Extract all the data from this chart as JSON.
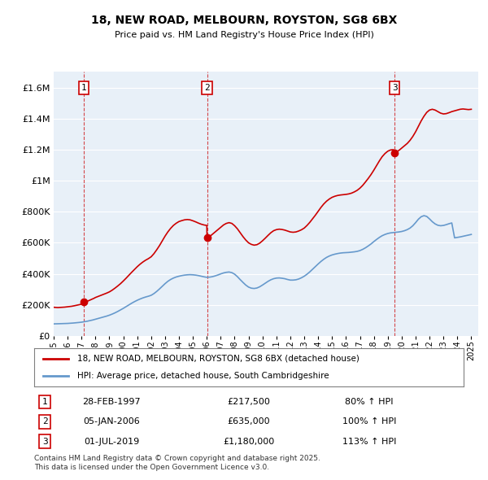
{
  "title": "18, NEW ROAD, MELBOURN, ROYSTON, SG8 6BX",
  "subtitle": "Price paid vs. HM Land Registry's House Price Index (HPI)",
  "xlim_start": 1995.0,
  "xlim_end": 2025.5,
  "ylim_min": 0,
  "ylim_max": 1700000,
  "yticks": [
    0,
    200000,
    400000,
    600000,
    800000,
    1000000,
    1200000,
    1400000,
    1600000
  ],
  "ytick_labels": [
    "£0",
    "£200K",
    "£400K",
    "£600K",
    "£800K",
    "£1M",
    "£1.2M",
    "£1.4M",
    "£1.6M"
  ],
  "bg_color": "#e8f0f8",
  "plot_bg_color": "#e8f0f8",
  "grid_color": "#ffffff",
  "red_line_color": "#cc0000",
  "blue_line_color": "#6699cc",
  "sale_points": [
    {
      "year": 1997.167,
      "price": 217500,
      "label": "1"
    },
    {
      "year": 2006.017,
      "price": 635000,
      "label": "2"
    },
    {
      "year": 2019.5,
      "price": 1180000,
      "label": "3"
    }
  ],
  "legend_entries": [
    "18, NEW ROAD, MELBOURN, ROYSTON, SG8 6BX (detached house)",
    "HPI: Average price, detached house, South Cambridgeshire"
  ],
  "table_rows": [
    {
      "num": "1",
      "date": "28-FEB-1997",
      "price": "£217,500",
      "change": "80% ↑ HPI"
    },
    {
      "num": "2",
      "date": "05-JAN-2006",
      "price": "£635,000",
      "change": "100% ↑ HPI"
    },
    {
      "num": "3",
      "date": "01-JUL-2019",
      "price": "£1,180,000",
      "change": "113% ↑ HPI"
    }
  ],
  "footer": "Contains HM Land Registry data © Crown copyright and database right 2025.\nThis data is licensed under the Open Government Licence v3.0.",
  "hpi_red_data": {
    "years": [
      1995.0,
      1995.1,
      1995.2,
      1995.3,
      1995.4,
      1995.5,
      1995.6,
      1995.7,
      1995.8,
      1995.9,
      1996.0,
      1996.1,
      1996.2,
      1996.3,
      1996.4,
      1996.5,
      1996.6,
      1996.7,
      1996.8,
      1996.9,
      1997.0,
      1997.1,
      1997.167,
      1997.2,
      1997.3,
      1997.4,
      1997.5,
      1997.6,
      1997.7,
      1997.8,
      1997.9,
      1998.0,
      1998.2,
      1998.4,
      1998.6,
      1998.8,
      1999.0,
      1999.2,
      1999.4,
      1999.6,
      1999.8,
      2000.0,
      2000.2,
      2000.4,
      2000.6,
      2000.8,
      2001.0,
      2001.2,
      2001.4,
      2001.6,
      2001.8,
      2002.0,
      2002.2,
      2002.4,
      2002.6,
      2002.8,
      2003.0,
      2003.2,
      2003.4,
      2003.6,
      2003.8,
      2004.0,
      2004.2,
      2004.4,
      2004.6,
      2004.8,
      2005.0,
      2005.2,
      2005.4,
      2005.6,
      2005.8,
      2006.0,
      2006.017,
      2006.2,
      2006.4,
      2006.6,
      2006.8,
      2007.0,
      2007.2,
      2007.4,
      2007.6,
      2007.8,
      2008.0,
      2008.2,
      2008.4,
      2008.6,
      2008.8,
      2009.0,
      2009.2,
      2009.4,
      2009.6,
      2009.8,
      2010.0,
      2010.2,
      2010.4,
      2010.6,
      2010.8,
      2011.0,
      2011.2,
      2011.4,
      2011.6,
      2011.8,
      2012.0,
      2012.2,
      2012.4,
      2012.6,
      2012.8,
      2013.0,
      2013.2,
      2013.4,
      2013.6,
      2013.8,
      2014.0,
      2014.2,
      2014.4,
      2014.6,
      2014.8,
      2015.0,
      2015.2,
      2015.4,
      2015.6,
      2015.8,
      2016.0,
      2016.2,
      2016.4,
      2016.6,
      2016.8,
      2017.0,
      2017.2,
      2017.4,
      2017.6,
      2017.8,
      2018.0,
      2018.2,
      2018.4,
      2018.6,
      2018.8,
      2019.0,
      2019.2,
      2019.4,
      2019.5,
      2019.6,
      2019.8,
      2020.0,
      2020.2,
      2020.4,
      2020.6,
      2020.8,
      2021.0,
      2021.2,
      2021.4,
      2021.6,
      2021.8,
      2022.0,
      2022.2,
      2022.4,
      2022.6,
      2022.8,
      2023.0,
      2023.2,
      2023.4,
      2023.6,
      2023.8,
      2024.0,
      2024.2,
      2024.4,
      2024.6,
      2024.8,
      2025.0
    ],
    "values": [
      185000,
      184000,
      183500,
      183000,
      183500,
      184000,
      184500,
      185000,
      186000,
      187000,
      188000,
      189000,
      190000,
      191500,
      193000,
      195000,
      197000,
      199000,
      201000,
      203000,
      205000,
      210000,
      217500,
      218000,
      220000,
      223000,
      227000,
      231000,
      235000,
      239000,
      243000,
      248000,
      255000,
      262000,
      269000,
      276000,
      284000,
      295000,
      308000,
      322000,
      337000,
      354000,
      372000,
      391000,
      410000,
      428000,
      446000,
      462000,
      476000,
      488000,
      498000,
      510000,
      530000,
      555000,
      582000,
      612000,
      643000,
      670000,
      693000,
      712000,
      726000,
      737000,
      743000,
      748000,
      750000,
      748000,
      742000,
      735000,
      727000,
      720000,
      715000,
      712000,
      635000,
      640000,
      655000,
      670000,
      685000,
      700000,
      715000,
      725000,
      730000,
      725000,
      710000,
      690000,
      665000,
      640000,
      618000,
      600000,
      590000,
      585000,
      588000,
      598000,
      613000,
      630000,
      648000,
      665000,
      678000,
      685000,
      688000,
      686000,
      682000,
      676000,
      670000,
      668000,
      670000,
      676000,
      684000,
      695000,
      712000,
      732000,
      755000,
      778000,
      803000,
      828000,
      850000,
      868000,
      882000,
      893000,
      900000,
      905000,
      908000,
      910000,
      912000,
      915000,
      920000,
      928000,
      938000,
      952000,
      970000,
      992000,
      1015000,
      1040000,
      1068000,
      1098000,
      1128000,
      1155000,
      1175000,
      1190000,
      1198000,
      1200000,
      1180000,
      1185000,
      1195000,
      1210000,
      1225000,
      1240000,
      1260000,
      1285000,
      1315000,
      1350000,
      1385000,
      1415000,
      1440000,
      1455000,
      1460000,
      1455000,
      1445000,
      1435000,
      1430000,
      1432000,
      1438000,
      1445000,
      1450000,
      1455000,
      1460000,
      1462000,
      1460000,
      1458000,
      1460000
    ]
  },
  "hpi_blue_data": {
    "years": [
      1995.0,
      1995.2,
      1995.4,
      1995.6,
      1995.8,
      1996.0,
      1996.2,
      1996.4,
      1996.6,
      1996.8,
      1997.0,
      1997.2,
      1997.4,
      1997.6,
      1997.8,
      1998.0,
      1998.2,
      1998.4,
      1998.6,
      1998.8,
      1999.0,
      1999.2,
      1999.4,
      1999.6,
      1999.8,
      2000.0,
      2000.2,
      2000.4,
      2000.6,
      2000.8,
      2001.0,
      2001.2,
      2001.4,
      2001.6,
      2001.8,
      2002.0,
      2002.2,
      2002.4,
      2002.6,
      2002.8,
      2003.0,
      2003.2,
      2003.4,
      2003.6,
      2003.8,
      2004.0,
      2004.2,
      2004.4,
      2004.6,
      2004.8,
      2005.0,
      2005.2,
      2005.4,
      2005.6,
      2005.8,
      2006.0,
      2006.2,
      2006.4,
      2006.6,
      2006.8,
      2007.0,
      2007.2,
      2007.4,
      2007.6,
      2007.8,
      2008.0,
      2008.2,
      2008.4,
      2008.6,
      2008.8,
      2009.0,
      2009.2,
      2009.4,
      2009.6,
      2009.8,
      2010.0,
      2010.2,
      2010.4,
      2010.6,
      2010.8,
      2011.0,
      2011.2,
      2011.4,
      2011.6,
      2011.8,
      2012.0,
      2012.2,
      2012.4,
      2012.6,
      2012.8,
      2013.0,
      2013.2,
      2013.4,
      2013.6,
      2013.8,
      2014.0,
      2014.2,
      2014.4,
      2014.6,
      2014.8,
      2015.0,
      2015.2,
      2015.4,
      2015.6,
      2015.8,
      2016.0,
      2016.2,
      2016.4,
      2016.6,
      2016.8,
      2017.0,
      2017.2,
      2017.4,
      2017.6,
      2017.8,
      2018.0,
      2018.2,
      2018.4,
      2018.6,
      2018.8,
      2019.0,
      2019.2,
      2019.4,
      2019.6,
      2019.8,
      2020.0,
      2020.2,
      2020.4,
      2020.6,
      2020.8,
      2021.0,
      2021.2,
      2021.4,
      2021.6,
      2021.8,
      2022.0,
      2022.2,
      2022.4,
      2022.6,
      2022.8,
      2023.0,
      2023.2,
      2023.4,
      2023.6,
      2023.8,
      2024.0,
      2024.2,
      2024.4,
      2024.6,
      2024.8,
      2025.0
    ],
    "values": [
      78000,
      78500,
      79000,
      79500,
      80000,
      81000,
      82000,
      83500,
      85000,
      87000,
      89000,
      92000,
      95000,
      99000,
      103000,
      108000,
      113000,
      118000,
      123000,
      128000,
      134000,
      141000,
      149000,
      158000,
      168000,
      178000,
      189000,
      200000,
      211000,
      221000,
      230000,
      238000,
      245000,
      251000,
      256000,
      262000,
      273000,
      287000,
      303000,
      320000,
      337000,
      352000,
      364000,
      373000,
      380000,
      385000,
      389000,
      392000,
      394000,
      395000,
      394000,
      392000,
      389000,
      385000,
      381000,
      378000,
      379000,
      382000,
      387000,
      393000,
      400000,
      406000,
      410000,
      412000,
      408000,
      398000,
      382000,
      363000,
      345000,
      328000,
      315000,
      308000,
      306000,
      309000,
      317000,
      328000,
      340000,
      352000,
      362000,
      369000,
      373000,
      374000,
      372000,
      369000,
      364000,
      360000,
      360000,
      362000,
      367000,
      375000,
      385000,
      398000,
      413000,
      430000,
      447000,
      464000,
      480000,
      494000,
      506000,
      515000,
      522000,
      527000,
      531000,
      534000,
      536000,
      537000,
      538000,
      540000,
      542000,
      545000,
      550000,
      558000,
      568000,
      580000,
      593000,
      608000,
      622000,
      635000,
      646000,
      654000,
      660000,
      664000,
      666000,
      668000,
      670000,
      673000,
      678000,
      685000,
      695000,
      710000,
      730000,
      752000,
      768000,
      775000,
      770000,
      754000,
      736000,
      722000,
      713000,
      710000,
      712000,
      717000,
      723000,
      728000,
      632000,
      635000,
      638000,
      642000,
      646000,
      650000,
      654000
    ]
  }
}
